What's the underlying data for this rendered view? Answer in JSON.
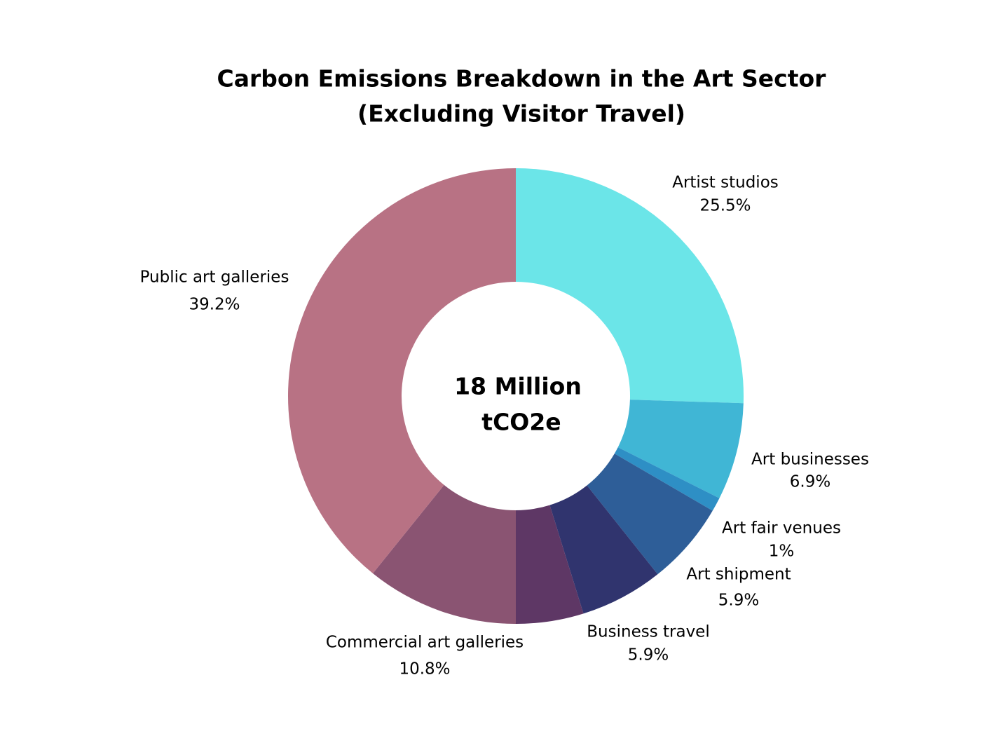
{
  "chart_data": {
    "type": "donut",
    "title": [
      "Carbon Emissions Breakdown in the Art Sector",
      "(Excluding Visitor Travel)"
    ],
    "center_text": [
      "18 Million",
      "tCO2e"
    ],
    "categories": [
      "Artist studios",
      "Art businesses",
      "Art fair venues",
      "Art shipment",
      "Business travel",
      null,
      "Commercial art galleries",
      "Public art galleries"
    ],
    "values": [
      25.5,
      6.9,
      1,
      5.9,
      5.9,
      4.8,
      10.8,
      39.2
    ],
    "value_labels": [
      "25.5%",
      "6.9%",
      "1%",
      "5.9%",
      "5.9%",
      null,
      "10.8%",
      "39.2%"
    ],
    "colors": [
      "#6be5e8",
      "#40b6d5",
      "#2e8fc5",
      "#2e5e98",
      "#30346e",
      "#5e3765",
      "#8a5472",
      "#b87284"
    ]
  }
}
